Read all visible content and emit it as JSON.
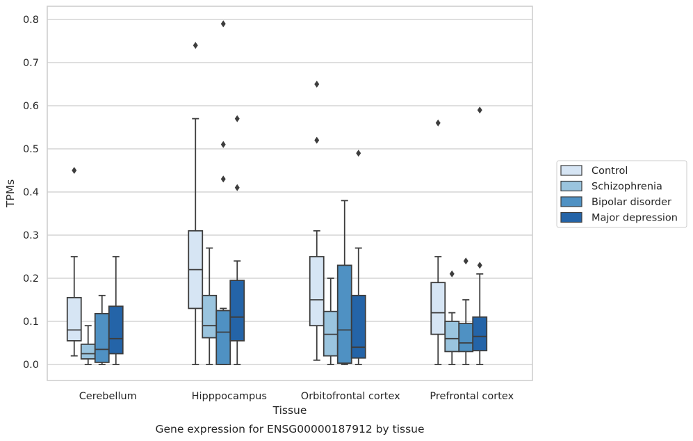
{
  "chart_data": {
    "type": "box",
    "xlabel": "Tissue",
    "ylabel": "TPMs",
    "caption": "Gene expression for ENSG00000187912 by tissue",
    "ylim": [
      -0.04,
      0.83
    ],
    "yticks": [
      "0.0",
      "0.1",
      "0.2",
      "0.3",
      "0.4",
      "0.5",
      "0.6",
      "0.7",
      "0.8"
    ],
    "grid": "horizontal",
    "legend_position": "right",
    "categories": [
      "Cerebellum",
      "Hipppocampus",
      "Orbitofrontal cortex",
      "Prefrontal cortex"
    ],
    "series": [
      {
        "name": "Control",
        "color": "#d6e5f4",
        "boxes": [
          {
            "whisker_low": 0.02,
            "q1": 0.055,
            "median": 0.08,
            "q3": 0.155,
            "whisker_high": 0.25,
            "outliers": [
              0.45
            ]
          },
          {
            "whisker_low": 0.0,
            "q1": 0.13,
            "median": 0.22,
            "q3": 0.31,
            "whisker_high": 0.57,
            "outliers": [
              0.74
            ]
          },
          {
            "whisker_low": 0.01,
            "q1": 0.09,
            "median": 0.15,
            "q3": 0.25,
            "whisker_high": 0.31,
            "outliers": [
              0.52,
              0.65
            ]
          },
          {
            "whisker_low": 0.0,
            "q1": 0.07,
            "median": 0.12,
            "q3": 0.19,
            "whisker_high": 0.25,
            "outliers": [
              0.56
            ]
          }
        ]
      },
      {
        "name": "Schizophrenia",
        "color": "#9ac4de",
        "boxes": [
          {
            "whisker_low": 0.0,
            "q1": 0.013,
            "median": 0.025,
            "q3": 0.047,
            "whisker_high": 0.09,
            "outliers": []
          },
          {
            "whisker_low": 0.0,
            "q1": 0.062,
            "median": 0.09,
            "q3": 0.16,
            "whisker_high": 0.27,
            "outliers": []
          },
          {
            "whisker_low": 0.0,
            "q1": 0.02,
            "median": 0.07,
            "q3": 0.123,
            "whisker_high": 0.2,
            "outliers": []
          },
          {
            "whisker_low": 0.0,
            "q1": 0.03,
            "median": 0.06,
            "q3": 0.1,
            "whisker_high": 0.12,
            "outliers": [
              0.21
            ]
          }
        ]
      },
      {
        "name": "Bipolar disorder",
        "color": "#4f91c3",
        "boxes": [
          {
            "whisker_low": 0.0,
            "q1": 0.005,
            "median": 0.035,
            "q3": 0.118,
            "whisker_high": 0.16,
            "outliers": []
          },
          {
            "whisker_low": 0.0,
            "q1": 0.0,
            "median": 0.075,
            "q3": 0.125,
            "whisker_high": 0.13,
            "outliers": [
              0.43,
              0.51,
              0.79
            ]
          },
          {
            "whisker_low": 0.0,
            "q1": 0.003,
            "median": 0.08,
            "q3": 0.23,
            "whisker_high": 0.38,
            "outliers": []
          },
          {
            "whisker_low": 0.0,
            "q1": 0.03,
            "median": 0.05,
            "q3": 0.095,
            "whisker_high": 0.15,
            "outliers": [
              0.24
            ]
          }
        ]
      },
      {
        "name": "Major depression",
        "color": "#2464a8",
        "boxes": [
          {
            "whisker_low": 0.0,
            "q1": 0.025,
            "median": 0.06,
            "q3": 0.135,
            "whisker_high": 0.25,
            "outliers": []
          },
          {
            "whisker_low": 0.0,
            "q1": 0.055,
            "median": 0.11,
            "q3": 0.195,
            "whisker_high": 0.24,
            "outliers": [
              0.41,
              0.57
            ]
          },
          {
            "whisker_low": 0.0,
            "q1": 0.015,
            "median": 0.04,
            "q3": 0.16,
            "whisker_high": 0.27,
            "outliers": [
              0.49
            ]
          },
          {
            "whisker_low": 0.0,
            "q1": 0.032,
            "median": 0.065,
            "q3": 0.11,
            "whisker_high": 0.21,
            "outliers": [
              0.23,
              0.59
            ]
          }
        ]
      }
    ]
  }
}
